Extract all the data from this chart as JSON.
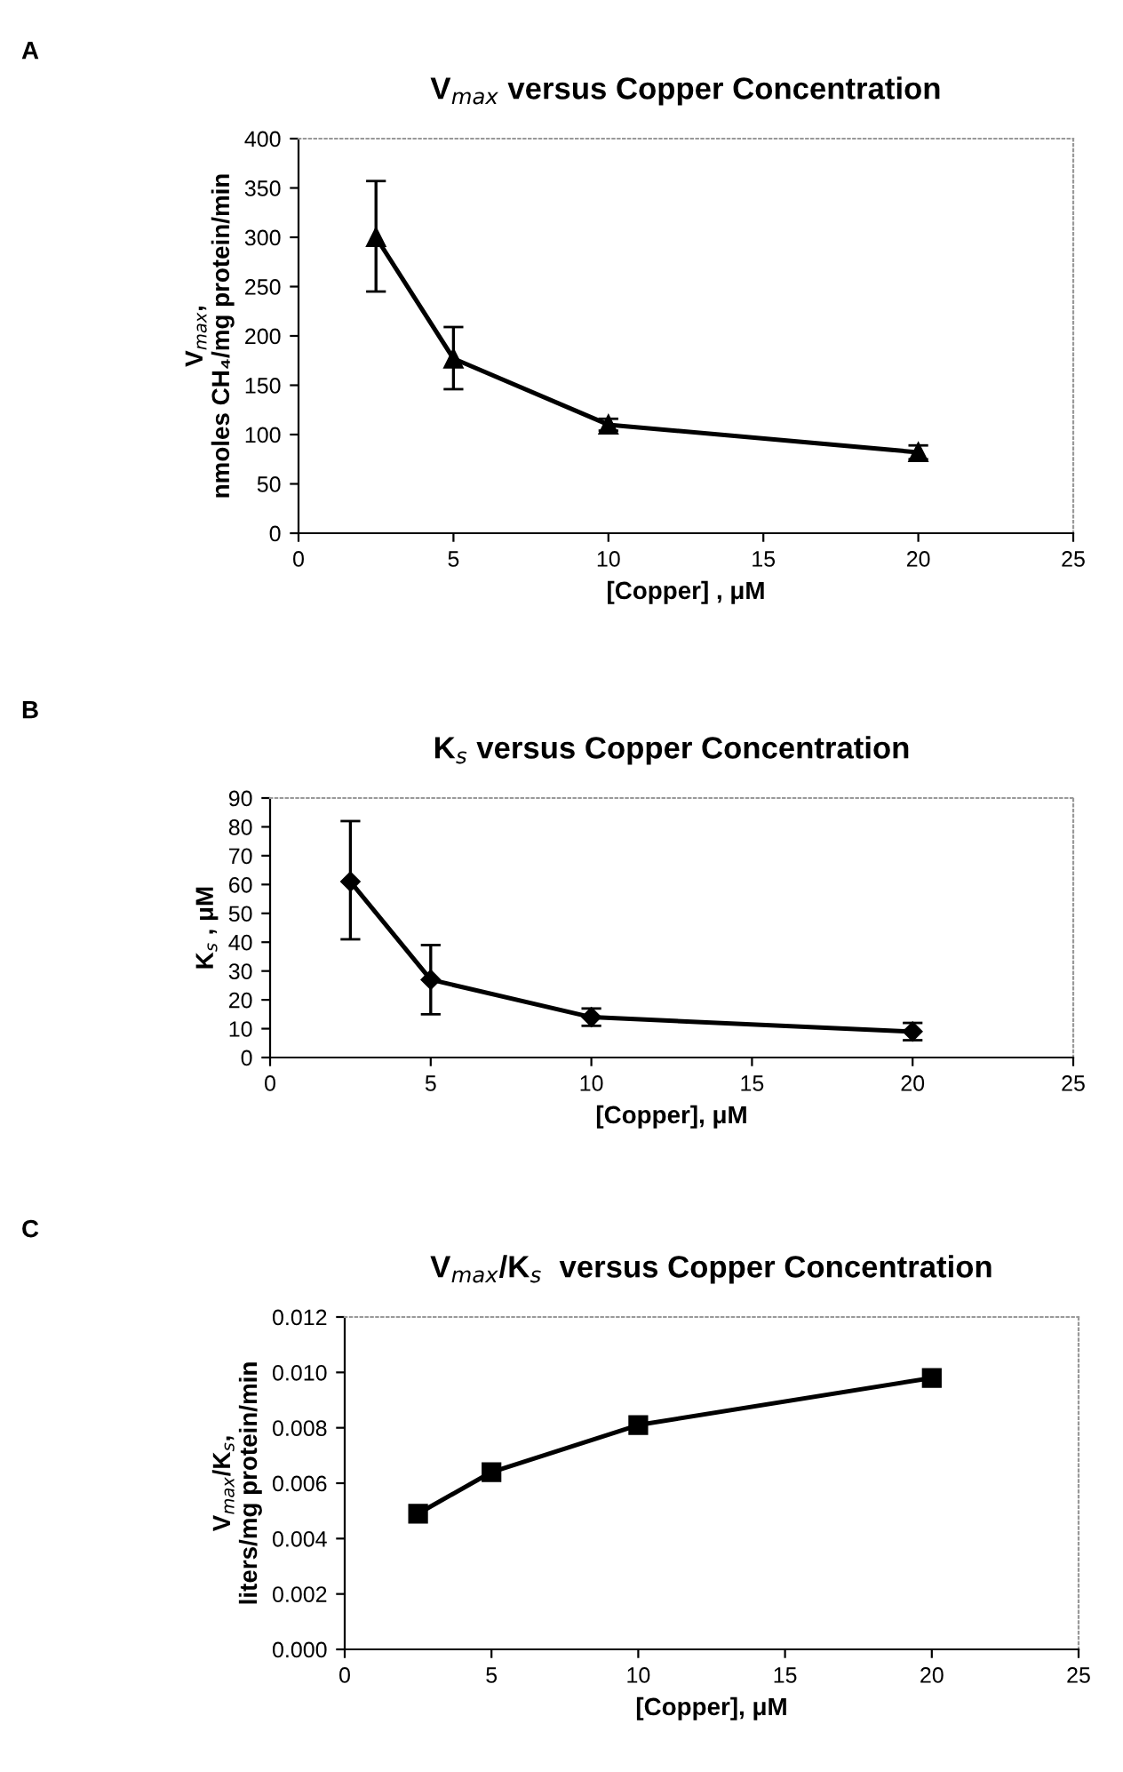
{
  "chart_data": [
    {
      "type": "line",
      "title": "V$_{max}$ versus Copper Concentration",
      "xlabel": "[Copper] , μM",
      "ylabel": "V$_{max}$,\nnmoles CH₄/mg protein/min",
      "annotations": [
        "A"
      ],
      "x": [
        2.5,
        5,
        10,
        20
      ],
      "series": [
        {
          "color": "#000000",
          "values": [
            300,
            177,
            110,
            82
          ],
          "errors": [
            [
              245,
              357
            ],
            [
              146,
              209
            ],
            [
              104,
              116
            ],
            [
              75,
              89
            ]
          ]
        }
      ],
      "marker": "triangle",
      "line_style": "solid",
      "grid": false,
      "legend": false,
      "xlim": [
        0,
        25
      ],
      "xticks": [
        0,
        5,
        10,
        15,
        20,
        25
      ],
      "ylim": [
        0,
        400
      ],
      "yticks": [
        0,
        50,
        100,
        150,
        200,
        250,
        300,
        350,
        400
      ]
    },
    {
      "type": "line",
      "title": "K$_{s}$ versus Copper Concentration",
      "xlabel": "[Copper], μM",
      "ylabel": "K$_{s}$ , μM",
      "annotations": [
        "B"
      ],
      "x": [
        2.5,
        5,
        10,
        20
      ],
      "series": [
        {
          "color": "#000000",
          "values": [
            61,
            27,
            14,
            9
          ],
          "errors": [
            [
              41,
              82
            ],
            [
              15,
              39
            ],
            [
              11,
              17
            ],
            [
              6,
              12
            ]
          ]
        }
      ],
      "marker": "diamond",
      "line_style": "solid",
      "grid": false,
      "legend": false,
      "xlim": [
        0,
        25
      ],
      "xticks": [
        0,
        5,
        10,
        15,
        20,
        25
      ],
      "ylim": [
        0,
        90
      ],
      "yticks": [
        0,
        10,
        20,
        30,
        40,
        50,
        60,
        70,
        80,
        90
      ]
    },
    {
      "type": "line",
      "title": "V$_{max}$/K$_{s}$  versus Copper Concentration",
      "xlabel": "[Copper], μM",
      "ylabel": "V$_{max}$/K$_{s}$,\nliters/mg protein/min",
      "annotations": [
        "C"
      ],
      "x": [
        2.5,
        5,
        10,
        20
      ],
      "series": [
        {
          "color": "#000000",
          "values": [
            0.0049,
            0.0064,
            0.0081,
            0.0098
          ]
        }
      ],
      "marker": "square",
      "line_style": "solid",
      "grid": false,
      "legend": false,
      "xlim": [
        0,
        25
      ],
      "xticks": [
        0,
        5,
        10,
        15,
        20,
        25
      ],
      "ylim": [
        0,
        0.012
      ],
      "yticks": [
        {
          "value": 0,
          "label": "0.000"
        },
        {
          "value": 0.002,
          "label": "0.002"
        },
        {
          "value": 0.004,
          "label": "0.004"
        },
        {
          "value": 0.006,
          "label": "0.006"
        },
        {
          "value": 0.008,
          "label": "0.008"
        },
        {
          "value": 0.01,
          "label": "0.010"
        },
        {
          "value": 0.012,
          "label": "0.012"
        }
      ]
    }
  ]
}
